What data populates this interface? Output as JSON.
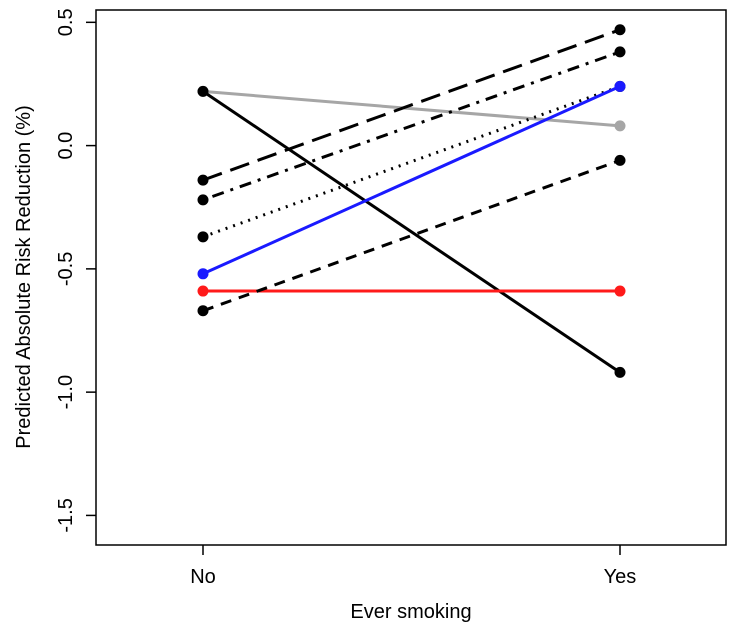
{
  "chart_data": {
    "type": "line",
    "xlabel": "Ever smoking",
    "ylabel": "Predicted Absolute Risk Reduction (%)",
    "categories": [
      "No",
      "Yes"
    ],
    "ylim": [
      -1.62,
      0.55
    ],
    "yticks": [
      -1.5,
      -1.0,
      -0.5,
      0.0,
      0.5
    ],
    "ytick_labels": [
      "-1.5",
      "-1.0",
      "-0.5",
      "0.0",
      "0.5"
    ],
    "grid": false,
    "series": [
      {
        "values": [
          0.22,
          0.08
        ],
        "color": "#a6a6a6",
        "dash": "solid"
      },
      {
        "values": [
          0.22,
          -0.92
        ],
        "color": "#000000",
        "dash": "solid"
      },
      {
        "values": [
          -0.14,
          0.47
        ],
        "color": "#000000",
        "dash": "longdash"
      },
      {
        "values": [
          -0.22,
          0.38
        ],
        "color": "#000000",
        "dash": "dotdash"
      },
      {
        "values": [
          -0.37,
          0.24
        ],
        "color": "#000000",
        "dash": "dotted"
      },
      {
        "values": [
          -0.52,
          0.24
        ],
        "color": "#1a1aff",
        "dash": "solid"
      },
      {
        "values": [
          -0.59,
          -0.59
        ],
        "color": "#ff1a1a",
        "dash": "solid"
      },
      {
        "values": [
          -0.67,
          -0.06
        ],
        "color": "#000000",
        "dash": "dashed"
      }
    ]
  }
}
